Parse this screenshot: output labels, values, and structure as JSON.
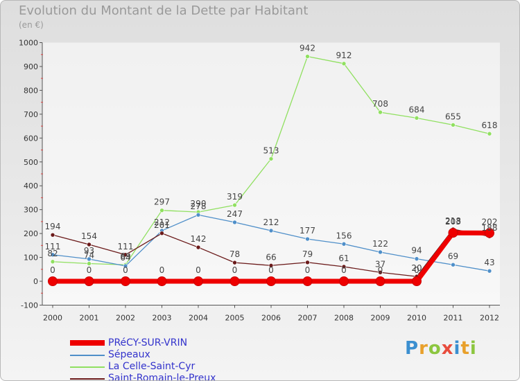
{
  "title": "Evolution du Montant de la Dette par Habitant",
  "unit_label": "(en €)",
  "logo": {
    "letters": [
      {
        "ch": "P",
        "color": "#3b8fd0"
      },
      {
        "ch": "r",
        "color": "#e8a02b"
      },
      {
        "ch": "o",
        "color": "#8cc63f"
      },
      {
        "ch": "x",
        "color": "#e84c3d"
      },
      {
        "ch": "i",
        "color": "#3b8fd0"
      },
      {
        "ch": "t",
        "color": "#e8a02b"
      },
      {
        "ch": "i",
        "color": "#8cc63f"
      }
    ]
  },
  "chart_data": {
    "type": "line",
    "x": [
      "2000",
      "2001",
      "2002",
      "2003",
      "2004",
      "2005",
      "2006",
      "2007",
      "2008",
      "2009",
      "2010",
      "2011",
      "2012"
    ],
    "ylim": [
      -100,
      1000
    ],
    "yticks": [
      "-100",
      "0",
      "100",
      "200",
      "300",
      "400",
      "500",
      "600",
      "700",
      "800",
      "900",
      "1000"
    ],
    "grid": false,
    "legend_position": "bottom-left",
    "series": [
      {
        "name": "PRéCY-SUR-VRIN",
        "color": "#ee0000",
        "values": [
          0,
          0,
          0,
          0,
          0,
          0,
          0,
          0,
          0,
          0,
          0,
          203,
          202
        ]
      },
      {
        "name": "Sépeaux",
        "color": "#4f8fc9",
        "values": [
          111,
          93,
          64,
          212,
          278,
          247,
          212,
          177,
          156,
          122,
          94,
          69,
          43
        ]
      },
      {
        "name": "La Celle-Saint-Cyr",
        "color": "#90e060",
        "values": [
          82,
          74,
          69,
          297,
          290,
          319,
          513,
          942,
          912,
          708,
          684,
          655,
          618
        ]
      },
      {
        "name": "Saint-Romain-le-Preux",
        "color": "#6b1a1a",
        "values": [
          194,
          154,
          111,
          201,
          142,
          78,
          66,
          79,
          61,
          37,
          20,
          218,
          188
        ]
      }
    ]
  }
}
